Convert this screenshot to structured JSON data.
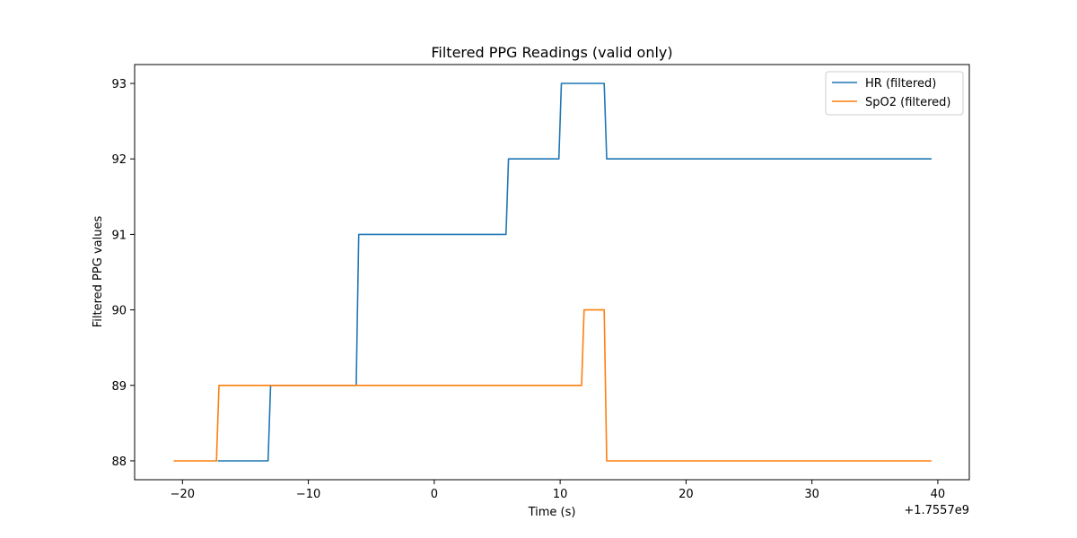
{
  "chart_data": {
    "type": "line",
    "title": "Filtered PPG Readings (valid only)",
    "xlabel": "Time (s)",
    "ylabel": "Filtered PPG values",
    "x_offset_label": "+1.7557e9",
    "xlim": [
      -23.8,
      42.5
    ],
    "ylim": [
      87.75,
      93.25
    ],
    "xticks": [
      -20,
      -10,
      0,
      10,
      20,
      30,
      40
    ],
    "yticks": [
      88,
      89,
      90,
      91,
      92,
      93
    ],
    "xtick_labels": [
      "−20",
      "−10",
      "0",
      "10",
      "20",
      "30",
      "40"
    ],
    "ytick_labels": [
      "88",
      "89",
      "90",
      "91",
      "92",
      "93"
    ],
    "grid": false,
    "legend": "top-right",
    "series": [
      {
        "name": "HR (filtered)",
        "color": "#1f77b4",
        "x": [
          -17.2,
          -13.2,
          -13.0,
          -6.2,
          -6.0,
          5.7,
          5.9,
          9.9,
          10.1,
          13.5,
          13.7,
          39.5
        ],
        "y": [
          88,
          88,
          89,
          89,
          91,
          91,
          92,
          92,
          93,
          93,
          92,
          92
        ]
      },
      {
        "name": "SpO2 (filtered)",
        "color": "#ff7f0e",
        "x": [
          -20.7,
          -17.3,
          -17.1,
          11.7,
          11.9,
          13.5,
          13.7,
          39.5
        ],
        "y": [
          88,
          88,
          89,
          89,
          90,
          90,
          88,
          88
        ]
      }
    ]
  }
}
